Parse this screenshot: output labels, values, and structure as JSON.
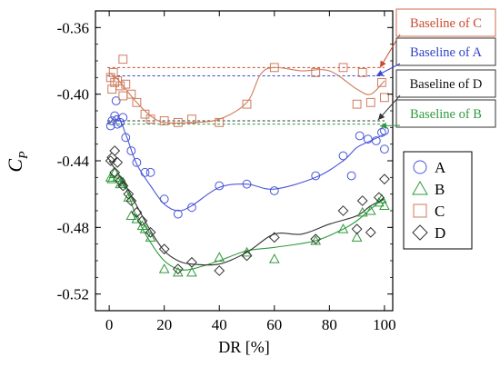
{
  "chart_data": {
    "type": "scatter",
    "xlabel": "DR [%]",
    "ylabel": "C",
    "ylabel_sub": "P",
    "xlim": [
      -5,
      103
    ],
    "ylim": [
      -0.53,
      -0.35
    ],
    "xticks": [
      0,
      20,
      40,
      60,
      80,
      100
    ],
    "yticks": [
      -0.36,
      -0.4,
      -0.44,
      -0.48,
      -0.52
    ],
    "ytick_labels": [
      "-0.36",
      "-0.40",
      "-0.44",
      "-0.48",
      "-0.52"
    ],
    "legend_position": "right",
    "series": [
      {
        "name": "A",
        "marker": "circle",
        "color": "#4a56d6",
        "points": [
          [
            0.5,
            -0.419
          ],
          [
            1,
            -0.416
          ],
          [
            2,
            -0.413
          ],
          [
            2.5,
            -0.404
          ],
          [
            3,
            -0.418
          ],
          [
            4,
            -0.417
          ],
          [
            5,
            -0.414
          ],
          [
            6,
            -0.426
          ],
          [
            8,
            -0.434
          ],
          [
            10,
            -0.441
          ],
          [
            13,
            -0.447
          ],
          [
            15,
            -0.447
          ],
          [
            20,
            -0.463
          ],
          [
            25,
            -0.472
          ],
          [
            30,
            -0.468
          ],
          [
            40,
            -0.455
          ],
          [
            50,
            -0.454
          ],
          [
            60,
            -0.458
          ],
          [
            75,
            -0.449
          ],
          [
            85,
            -0.437
          ],
          [
            88,
            -0.449
          ],
          [
            91,
            -0.425
          ],
          [
            94,
            -0.427
          ],
          [
            97,
            -0.428
          ],
          [
            99,
            -0.423
          ],
          [
            100,
            -0.422
          ],
          [
            100,
            -0.433
          ]
        ],
        "trend": [
          [
            0,
            -0.418
          ],
          [
            3,
            -0.413
          ],
          [
            6,
            -0.424
          ],
          [
            10,
            -0.442
          ],
          [
            15,
            -0.455
          ],
          [
            20,
            -0.466
          ],
          [
            25,
            -0.47
          ],
          [
            30,
            -0.467
          ],
          [
            40,
            -0.456
          ],
          [
            50,
            -0.454
          ],
          [
            60,
            -0.457
          ],
          [
            75,
            -0.45
          ],
          [
            85,
            -0.44
          ],
          [
            90,
            -0.432
          ],
          [
            95,
            -0.428
          ],
          [
            100,
            -0.424
          ]
        ]
      },
      {
        "name": "B",
        "marker": "triangle",
        "color": "#2f9a3a",
        "points": [
          [
            0.5,
            -0.45
          ],
          [
            1,
            -0.451
          ],
          [
            2,
            -0.447
          ],
          [
            3,
            -0.45
          ],
          [
            4,
            -0.454
          ],
          [
            5,
            -0.453
          ],
          [
            7,
            -0.462
          ],
          [
            8,
            -0.473
          ],
          [
            10,
            -0.475
          ],
          [
            12,
            -0.479
          ],
          [
            13,
            -0.481
          ],
          [
            15,
            -0.486
          ],
          [
            20,
            -0.505
          ],
          [
            25,
            -0.507
          ],
          [
            30,
            -0.507
          ],
          [
            40,
            -0.498
          ],
          [
            50,
            -0.495
          ],
          [
            60,
            -0.499
          ],
          [
            75,
            -0.488
          ],
          [
            85,
            -0.481
          ],
          [
            90,
            -0.486
          ],
          [
            92,
            -0.471
          ],
          [
            95,
            -0.47
          ],
          [
            98,
            -0.465
          ],
          [
            99,
            -0.463
          ],
          [
            100,
            -0.467
          ]
        ],
        "trend": [
          [
            0,
            -0.45
          ],
          [
            5,
            -0.453
          ],
          [
            10,
            -0.474
          ],
          [
            15,
            -0.489
          ],
          [
            20,
            -0.5
          ],
          [
            25,
            -0.505
          ],
          [
            30,
            -0.505
          ],
          [
            40,
            -0.5
          ],
          [
            50,
            -0.494
          ],
          [
            60,
            -0.492
          ],
          [
            75,
            -0.488
          ],
          [
            85,
            -0.481
          ],
          [
            90,
            -0.476
          ],
          [
            95,
            -0.469
          ],
          [
            100,
            -0.462
          ]
        ]
      },
      {
        "name": "C",
        "marker": "square",
        "color": "#d07a5c",
        "points": [
          [
            0.5,
            -0.39
          ],
          [
            1,
            -0.397
          ],
          [
            1.5,
            -0.387
          ],
          [
            2,
            -0.393
          ],
          [
            3,
            -0.392
          ],
          [
            4,
            -0.395
          ],
          [
            5,
            -0.379
          ],
          [
            5,
            -0.401
          ],
          [
            6,
            -0.394
          ],
          [
            8,
            -0.4
          ],
          [
            10,
            -0.405
          ],
          [
            13,
            -0.412
          ],
          [
            15,
            -0.415
          ],
          [
            20,
            -0.416
          ],
          [
            25,
            -0.417
          ],
          [
            30,
            -0.415
          ],
          [
            40,
            -0.417
          ],
          [
            50,
            -0.406
          ],
          [
            60,
            -0.384
          ],
          [
            75,
            -0.387
          ],
          [
            85,
            -0.384
          ],
          [
            90,
            -0.406
          ],
          [
            92,
            -0.387
          ],
          [
            95,
            -0.405
          ],
          [
            99,
            -0.393
          ],
          [
            100,
            -0.402
          ]
        ],
        "trend": [
          [
            0,
            -0.387
          ],
          [
            3,
            -0.391
          ],
          [
            6,
            -0.397
          ],
          [
            10,
            -0.405
          ],
          [
            15,
            -0.413
          ],
          [
            20,
            -0.417
          ],
          [
            30,
            -0.417
          ],
          [
            40,
            -0.415
          ],
          [
            50,
            -0.405
          ],
          [
            55,
            -0.388
          ],
          [
            60,
            -0.384
          ],
          [
            70,
            -0.386
          ],
          [
            80,
            -0.386
          ],
          [
            90,
            -0.397
          ],
          [
            95,
            -0.4
          ],
          [
            100,
            -0.392
          ]
        ]
      },
      {
        "name": "D",
        "marker": "diamond",
        "color": "#333333",
        "points": [
          [
            0.5,
            -0.44
          ],
          [
            1,
            -0.438
          ],
          [
            2,
            -0.434
          ],
          [
            2,
            -0.447
          ],
          [
            3,
            -0.441
          ],
          [
            4,
            -0.452
          ],
          [
            5,
            -0.455
          ],
          [
            7,
            -0.46
          ],
          [
            8,
            -0.464
          ],
          [
            10,
            -0.471
          ],
          [
            12,
            -0.476
          ],
          [
            15,
            -0.483
          ],
          [
            20,
            -0.493
          ],
          [
            25,
            -0.505
          ],
          [
            30,
            -0.501
          ],
          [
            40,
            -0.506
          ],
          [
            50,
            -0.497
          ],
          [
            60,
            -0.486
          ],
          [
            75,
            -0.487
          ],
          [
            85,
            -0.47
          ],
          [
            90,
            -0.481
          ],
          [
            92,
            -0.464
          ],
          [
            95,
            -0.483
          ],
          [
            98,
            -0.462
          ],
          [
            100,
            -0.451
          ]
        ],
        "trend": [
          [
            0,
            -0.44
          ],
          [
            5,
            -0.452
          ],
          [
            10,
            -0.467
          ],
          [
            15,
            -0.482
          ],
          [
            20,
            -0.494
          ],
          [
            25,
            -0.5
          ],
          [
            30,
            -0.502
          ],
          [
            40,
            -0.502
          ],
          [
            50,
            -0.495
          ],
          [
            60,
            -0.484
          ],
          [
            70,
            -0.484
          ],
          [
            80,
            -0.478
          ],
          [
            90,
            -0.473
          ],
          [
            95,
            -0.467
          ],
          [
            100,
            -0.463
          ]
        ]
      }
    ],
    "baselines": [
      {
        "name": "C",
        "label": "Baseline of C",
        "y": -0.384,
        "color": "#c94a2c",
        "label_color": "#c94a2c",
        "box_color": "#d06a4e"
      },
      {
        "name": "A",
        "label": "Baseline of A",
        "y": -0.389,
        "color": "#3a48d0",
        "label_color": "#2f3fc8",
        "box_color": "#333333"
      },
      {
        "name": "D",
        "label": "Baseline of D",
        "y": -0.416,
        "color": "#333333",
        "label_color": "#111111",
        "box_color": "#333333"
      },
      {
        "name": "B",
        "label": "Baseline of B",
        "y": -0.418,
        "color": "#2f9a3a",
        "label_color": "#2f9a3a",
        "box_color": "#333333"
      }
    ]
  }
}
